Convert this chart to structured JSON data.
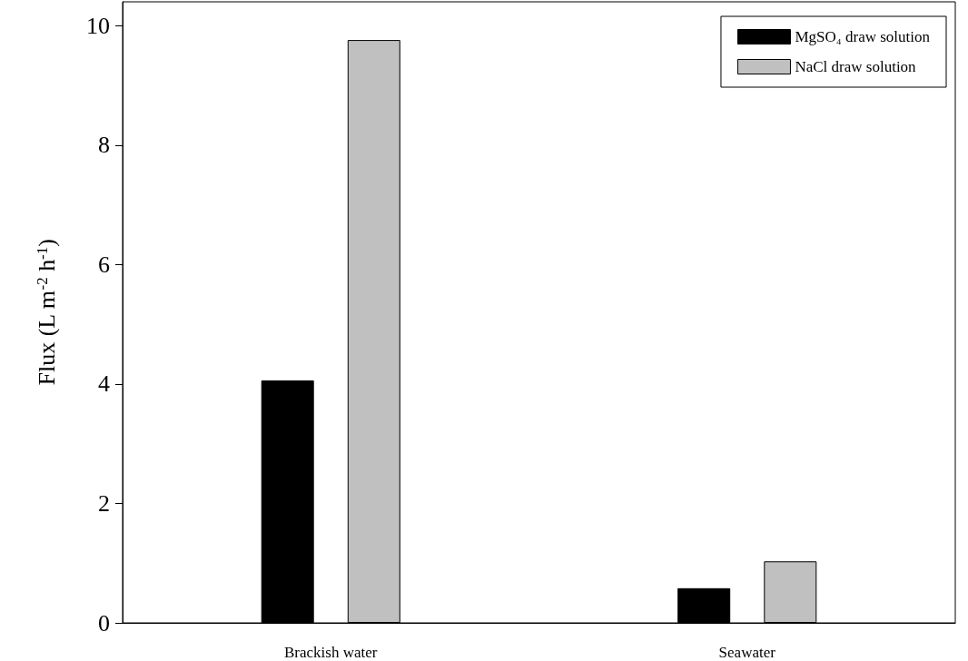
{
  "chart_data": {
    "type": "bar",
    "ylabel": "Flux (L m$^{-2}$ h$^{-1}$)",
    "categories": [
      "Brackish water",
      "Seawater"
    ],
    "series": [
      {
        "name": "MgSO₄ draw solution",
        "color": "#000000",
        "values": [
          4.06,
          0.58
        ]
      },
      {
        "name": "NaCl draw solution",
        "color": "#c0c0c0",
        "values": [
          9.76,
          1.03
        ]
      }
    ],
    "ylim": [
      0,
      10.4
    ],
    "yticks": [
      0,
      2,
      4,
      6,
      8,
      10
    ],
    "grid": false,
    "legend": "top right"
  }
}
